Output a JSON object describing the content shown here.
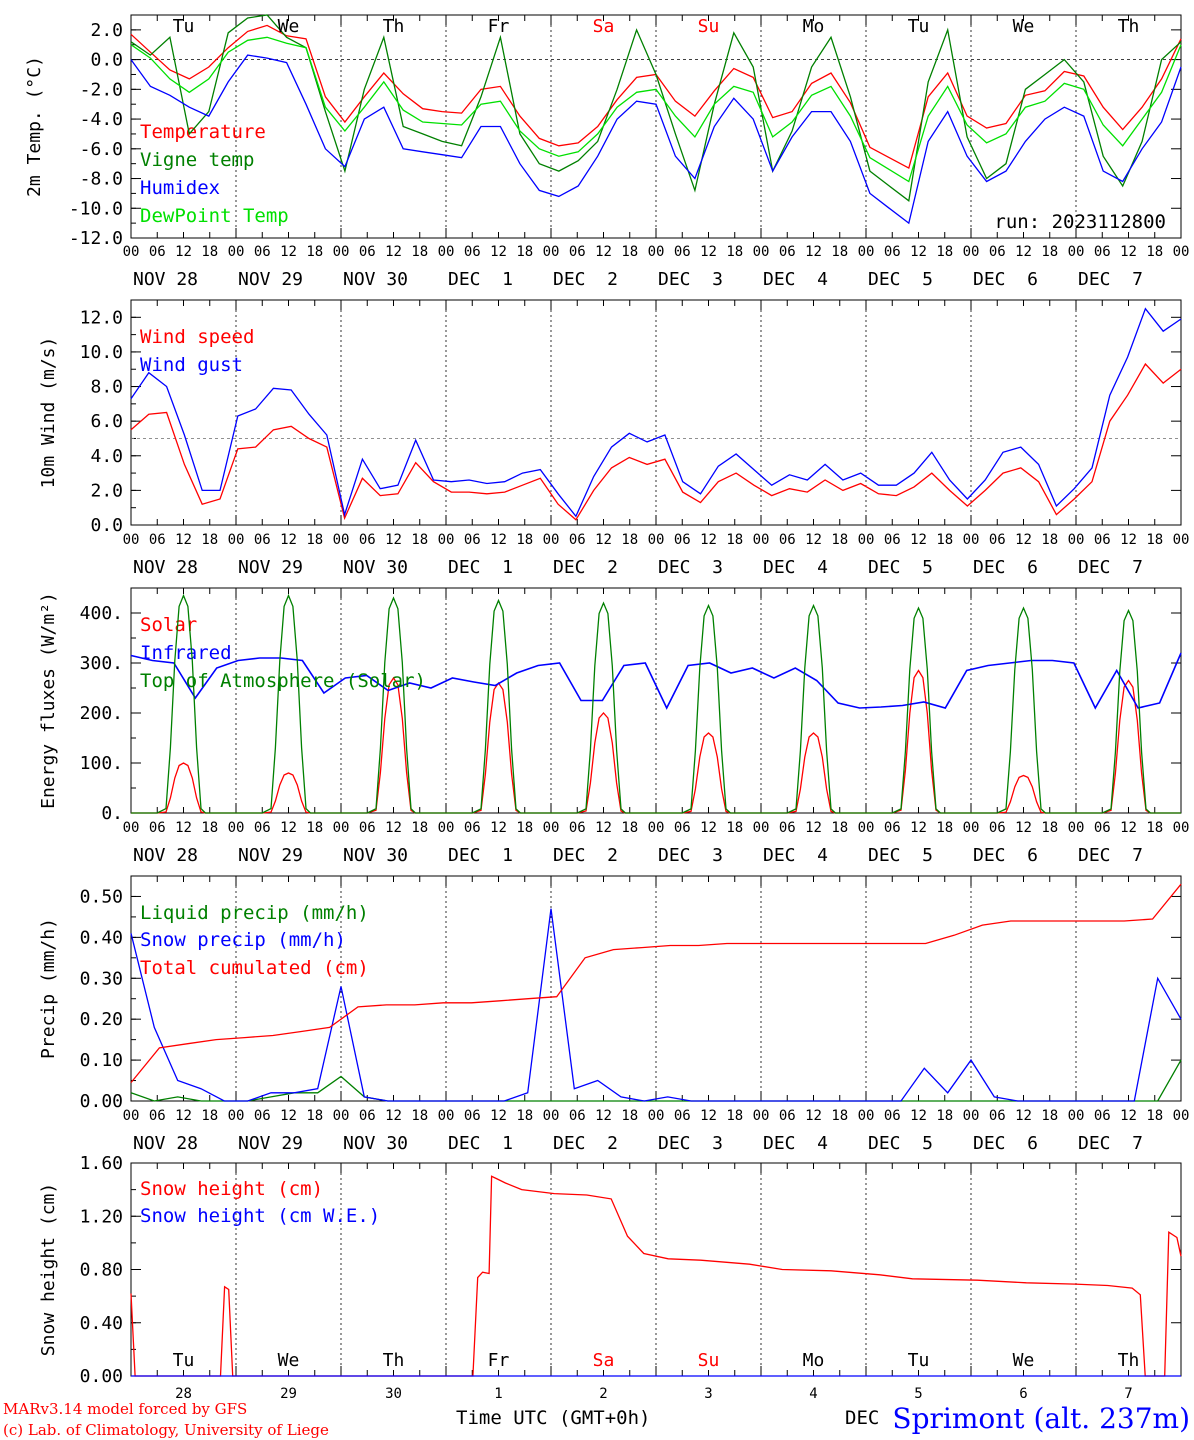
{
  "run_label": "run: 2023112800",
  "x_axis_title": "Time UTC (GMT+0h)",
  "month_label": "DEC",
  "station": "Sprimont (alt. 237m)",
  "credit_lines": [
    "MARv3.14 model forced by GFS",
    "(c) Lab. of Climatology, University of Liege"
  ],
  "hour_ticks": [
    "00",
    "06",
    "12",
    "18",
    "00",
    "06",
    "12",
    "18",
    "00",
    "06",
    "12",
    "18",
    "00",
    "06",
    "12",
    "18",
    "00",
    "06",
    "12",
    "18",
    "00",
    "06",
    "12",
    "18",
    "00",
    "06",
    "12",
    "18",
    "00",
    "06",
    "12",
    "18",
    "00",
    "06",
    "12",
    "18",
    "00",
    "06",
    "12",
    "18",
    "00"
  ],
  "date_labels": [
    "NOV 28",
    "NOV 29",
    "NOV 30",
    "DEC  1",
    "DEC  2",
    "DEC  3",
    "DEC  4",
    "DEC  5",
    "DEC  6",
    "DEC  7"
  ],
  "weekdays": [
    "Tu",
    "We",
    "Th",
    "Fr",
    "Sa",
    "Su",
    "Mo",
    "Tu",
    "We",
    "Th"
  ],
  "weekday_colors": [
    "#000000",
    "#000000",
    "#000000",
    "#000000",
    "#ff0000",
    "#ff0000",
    "#000000",
    "#000000",
    "#000000",
    "#000000"
  ],
  "day_numbers": [
    "28",
    "29",
    "30",
    "1",
    "2",
    "3",
    "4",
    "5",
    "6",
    "7"
  ],
  "colors": {
    "red": "#ff0000",
    "green": "#008000",
    "blue": "#0000ff",
    "lightgreen": "#00e000",
    "grid": "#808080"
  },
  "chart_data": [
    {
      "type": "line",
      "ylabel": "2m Temp. (°C)",
      "ylim": [
        -12,
        3
      ],
      "y_ticks": [
        "2.0",
        "0.0",
        "-2.0",
        "-4.0",
        "-6.0",
        "-8.0",
        "-10.0",
        "-12.0"
      ],
      "reference_line": 0,
      "series": [
        {
          "name": "Temperature",
          "color": "#ff0000",
          "values": [
            1.7,
            0.5,
            -0.7,
            -1.3,
            -0.5,
            0.8,
            1.9,
            2.3,
            1.6,
            1.4,
            -2.5,
            -4.2,
            -2.5,
            -0.9,
            -2.3,
            -3.3,
            -3.5,
            -3.6,
            -2.0,
            -1.8,
            -3.8,
            -5.3,
            -5.8,
            -5.6,
            -4.5,
            -2.7,
            -1.2,
            -1.0,
            -2.8,
            -3.8,
            -2.1,
            -0.6,
            -1.2,
            -3.9,
            -3.5,
            -1.6,
            -0.9,
            -2.9,
            -5.9,
            -6.6,
            -7.3,
            -2.5,
            -0.9,
            -3.8,
            -4.6,
            -4.3,
            -2.4,
            -2.1,
            -0.8,
            -1.1,
            -3.2,
            -4.7,
            -3.2,
            -1.3,
            1.4
          ]
        },
        {
          "name": "Vigne temp",
          "color": "#008000",
          "values": [
            1.2,
            0.3,
            1.5,
            -5.0,
            -3.5,
            1.8,
            2.8,
            3.0,
            1.5,
            0.8,
            -3.5,
            -7.5,
            -2.0,
            1.5,
            -4.5,
            -5.0,
            -5.5,
            -5.8,
            -2.5,
            1.5,
            -5.0,
            -7.0,
            -7.5,
            -6.8,
            -5.5,
            -2.0,
            2.0,
            -1.0,
            -5.0,
            -8.8,
            -3.0,
            1.8,
            -0.5,
            -7.5,
            -4.8,
            -0.5,
            1.5,
            -2.5,
            -7.5,
            -8.5,
            -9.5,
            -1.5,
            2.0,
            -5.2,
            -8.0,
            -7.0,
            -2.0,
            -1.0,
            0.0,
            -1.5,
            -6.5,
            -8.5,
            -5.5,
            0.0,
            1.2
          ]
        },
        {
          "name": "Humidex",
          "color": "#0000ff",
          "values": [
            0.0,
            -1.8,
            -2.4,
            -3.2,
            -3.8,
            -1.5,
            0.3,
            0.1,
            -0.2,
            -3.0,
            -6.0,
            -7.2,
            -4.0,
            -3.2,
            -6.0,
            -6.2,
            -6.4,
            -6.6,
            -4.5,
            -4.5,
            -7.0,
            -8.8,
            -9.2,
            -8.5,
            -6.5,
            -4.0,
            -2.8,
            -3.0,
            -6.5,
            -8.0,
            -4.5,
            -2.6,
            -4.0,
            -7.5,
            -5.2,
            -3.5,
            -3.5,
            -5.5,
            -9.0,
            -10.0,
            -11.0,
            -5.5,
            -3.5,
            -6.5,
            -8.2,
            -7.5,
            -5.5,
            -4.0,
            -3.2,
            -3.8,
            -7.5,
            -8.2,
            -6.0,
            -4.2,
            -0.5
          ]
        },
        {
          "name": "DewPoint Temp",
          "color": "#00e000",
          "values": [
            1.0,
            0.1,
            -1.3,
            -2.2,
            -1.3,
            0.5,
            1.3,
            1.5,
            1.1,
            0.8,
            -3.2,
            -4.8,
            -3.2,
            -1.5,
            -3.4,
            -4.2,
            -4.3,
            -4.4,
            -3.0,
            -2.8,
            -4.8,
            -6.0,
            -6.5,
            -6.2,
            -5.0,
            -3.2,
            -2.2,
            -2.0,
            -3.8,
            -5.2,
            -3.0,
            -1.8,
            -2.2,
            -5.2,
            -4.2,
            -2.4,
            -1.8,
            -3.8,
            -6.6,
            -7.4,
            -8.2,
            -3.8,
            -1.8,
            -4.4,
            -5.6,
            -5.0,
            -3.2,
            -2.8,
            -1.6,
            -2.0,
            -4.4,
            -5.8,
            -4.0,
            -2.2,
            1.0
          ]
        }
      ]
    },
    {
      "type": "line",
      "ylabel": "10m Wind (m/s)",
      "ylim": [
        0,
        13
      ],
      "y_ticks": [
        "12.0",
        "10.0",
        "8.0",
        "6.0",
        "4.0",
        "2.0",
        "0.0"
      ],
      "reference_line": 5,
      "series": [
        {
          "name": "Wind speed",
          "color": "#ff0000",
          "values": [
            5.5,
            6.4,
            6.5,
            3.5,
            1.2,
            1.5,
            4.4,
            4.5,
            5.5,
            5.7,
            5.0,
            4.5,
            0.4,
            2.7,
            1.7,
            1.8,
            3.6,
            2.5,
            1.9,
            1.9,
            1.8,
            1.9,
            2.3,
            2.7,
            1.2,
            0.3,
            2.0,
            3.3,
            3.9,
            3.5,
            3.8,
            1.9,
            1.3,
            2.5,
            3.0,
            2.3,
            1.7,
            2.1,
            1.9,
            2.6,
            2.0,
            2.4,
            1.8,
            1.7,
            2.2,
            3.0,
            2.0,
            1.1,
            2.0,
            3.0,
            3.3,
            2.5,
            0.6,
            1.5,
            2.5,
            6.0,
            7.5,
            9.3,
            8.2,
            9.0
          ]
        },
        {
          "name": "Wind gust",
          "color": "#0000ff",
          "values": [
            7.3,
            8.8,
            8.0,
            5.2,
            2.0,
            2.0,
            6.3,
            6.7,
            7.9,
            7.8,
            6.4,
            5.2,
            0.6,
            3.8,
            2.1,
            2.3,
            4.9,
            2.6,
            2.5,
            2.6,
            2.4,
            2.5,
            3.0,
            3.2,
            1.8,
            0.5,
            2.8,
            4.5,
            5.3,
            4.8,
            5.2,
            2.5,
            1.8,
            3.4,
            4.1,
            3.2,
            2.3,
            2.9,
            2.6,
            3.5,
            2.6,
            3.0,
            2.3,
            2.3,
            3.0,
            4.2,
            2.6,
            1.5,
            2.6,
            4.2,
            4.5,
            3.5,
            1.1,
            2.1,
            3.3,
            7.5,
            9.7,
            12.5,
            11.2,
            11.9
          ]
        }
      ]
    },
    {
      "type": "line",
      "ylabel": "Energy fluxes (W/m²)",
      "ylim": [
        0,
        450
      ],
      "y_ticks": [
        "400.",
        "300.",
        "200.",
        "100.",
        "0."
      ],
      "series": [
        {
          "name": "Solar",
          "color": "#ff0000",
          "daily_peaks": [
            100,
            80,
            270,
            260,
            200,
            160,
            160,
            285,
            75,
            265
          ]
        },
        {
          "name": "Infrared",
          "color": "#0000ff",
          "values": [
            315,
            305,
            300,
            230,
            290,
            305,
            310,
            310,
            305,
            240,
            270,
            275,
            245,
            260,
            250,
            270,
            262,
            255,
            280,
            295,
            300,
            225,
            225,
            295,
            300,
            210,
            295,
            300,
            280,
            290,
            270,
            290,
            265,
            220,
            210,
            212,
            215,
            222,
            210,
            285,
            295,
            300,
            305,
            305,
            300,
            210,
            285,
            210,
            220,
            320
          ]
        },
        {
          "name": "Top of Atmosphere (Solar)",
          "color": "#008000",
          "daily_peaks": [
            435,
            435,
            430,
            425,
            420,
            415,
            415,
            410,
            410,
            405
          ]
        }
      ]
    },
    {
      "type": "line",
      "ylabel": "Precip (mm/h)",
      "ylim": [
        0,
        0.55
      ],
      "y_ticks": [
        "0.50",
        "0.40",
        "0.30",
        "0.20",
        "0.10",
        "0.00"
      ],
      "series": [
        {
          "name": "Liquid precip (mm/h)",
          "color": "#008000",
          "values": [
            0.02,
            0.0,
            0.01,
            0.0,
            0.0,
            0.0,
            0.01,
            0.02,
            0.02,
            0.06,
            0.01,
            0.0,
            0.0,
            0.0,
            0.0,
            0.0,
            0.0,
            0.0,
            0.0,
            0.0,
            0.0,
            0.0,
            0.0,
            0.0,
            0.0,
            0.0,
            0.0,
            0.0,
            0.0,
            0.0,
            0.0,
            0.0,
            0.0,
            0.0,
            0.0,
            0.0,
            0.0,
            0.0,
            0.0,
            0.0,
            0.0,
            0.0,
            0.0,
            0.0,
            0.0,
            0.1
          ]
        },
        {
          "name": "Snow precip (mm/h)",
          "color": "#0000ff",
          "values": [
            0.41,
            0.18,
            0.05,
            0.03,
            0.0,
            0.0,
            0.02,
            0.02,
            0.03,
            0.28,
            0.01,
            0.0,
            0.0,
            0.0,
            0.0,
            0.0,
            0.0,
            0.02,
            0.47,
            0.03,
            0.05,
            0.01,
            0.0,
            0.01,
            0.0,
            0.0,
            0.0,
            0.0,
            0.0,
            0.0,
            0.0,
            0.0,
            0.0,
            0.0,
            0.08,
            0.02,
            0.1,
            0.01,
            0.0,
            0.0,
            0.0,
            0.0,
            0.0,
            0.0,
            0.3,
            0.2
          ]
        },
        {
          "name": "Total cumulated (cm)",
          "color": "#ff0000",
          "values": [
            0.045,
            0.13,
            0.14,
            0.15,
            0.155,
            0.16,
            0.17,
            0.18,
            0.23,
            0.235,
            0.235,
            0.24,
            0.24,
            0.245,
            0.25,
            0.255,
            0.35,
            0.37,
            0.375,
            0.38,
            0.38,
            0.385,
            0.385,
            0.385,
            0.385,
            0.385,
            0.385,
            0.385,
            0.385,
            0.405,
            0.43,
            0.44,
            0.44,
            0.44,
            0.44,
            0.44,
            0.445,
            0.53
          ]
        }
      ]
    },
    {
      "type": "line",
      "ylabel": "Snow height (cm)",
      "ylim": [
        0,
        1.6
      ],
      "y_ticks": [
        "1.60",
        "1.20",
        "0.80",
        "0.40",
        "0.00"
      ],
      "series": [
        {
          "name": "Snow height (cm)",
          "color": "#ff0000",
          "points": [
            [
              0,
              0.62
            ],
            [
              0.5,
              0
            ],
            [
              11,
              0
            ],
            [
              11.5,
              0.67
            ],
            [
              12,
              0.65
            ],
            [
              12.5,
              0
            ],
            [
              42,
              0
            ],
            [
              42.6,
              0.74
            ],
            [
              43.2,
              0.78
            ],
            [
              44,
              0.77
            ],
            [
              44.3,
              1.5
            ],
            [
              45,
              1.48
            ],
            [
              46,
              1.45
            ],
            [
              48,
              1.4
            ],
            [
              52,
              1.37
            ],
            [
              56,
              1.36
            ],
            [
              59,
              1.33
            ],
            [
              61,
              1.05
            ],
            [
              63,
              0.92
            ],
            [
              66,
              0.88
            ],
            [
              70,
              0.87
            ],
            [
              76,
              0.84
            ],
            [
              80,
              0.8
            ],
            [
              86,
              0.79
            ],
            [
              92,
              0.76
            ],
            [
              96,
              0.73
            ],
            [
              104,
              0.72
            ],
            [
              110,
              0.7
            ],
            [
              116,
              0.69
            ],
            [
              120,
              0.68
            ],
            [
              123,
              0.66
            ],
            [
              124,
              0.61
            ],
            [
              124.6,
              0
            ],
            [
              127,
              0
            ],
            [
              127.5,
              1.08
            ],
            [
              128.5,
              1.04
            ],
            [
              129,
              0.9
            ]
          ]
        },
        {
          "name": "Snow height (cm W.E.)",
          "color": "#0000ff",
          "points": [
            [
              0,
              0
            ],
            [
              129,
              0
            ]
          ]
        }
      ]
    }
  ]
}
